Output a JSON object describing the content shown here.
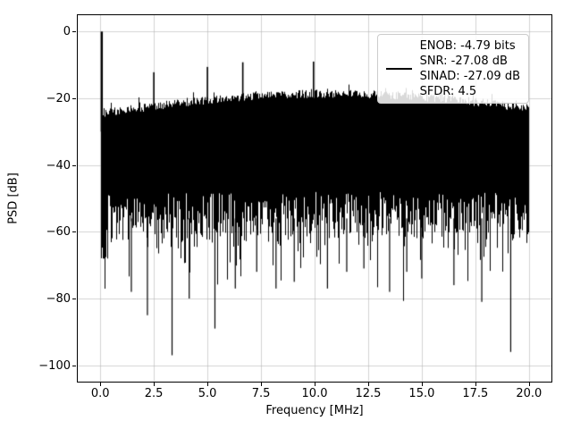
{
  "figure": {
    "background": "#ffffff",
    "line_color": "#000000",
    "grid_color": "#b0b0b0",
    "spine_color": "#000000"
  },
  "chart_data": {
    "type": "line",
    "title": "",
    "xlabel": "Frequency [MHz]",
    "ylabel": "PSD [dB]",
    "xlim": [
      -1.05,
      21.05
    ],
    "ylim": [
      -104.9,
      4.9
    ],
    "grid": true,
    "x_ticks": [
      {
        "value": 0.0,
        "label": "0.0"
      },
      {
        "value": 2.5,
        "label": "2.5"
      },
      {
        "value": 5.0,
        "label": "5.0"
      },
      {
        "value": 7.5,
        "label": "7.5"
      },
      {
        "value": 10.0,
        "label": "10.0"
      },
      {
        "value": 12.5,
        "label": "12.5"
      },
      {
        "value": 15.0,
        "label": "15.0"
      },
      {
        "value": 17.5,
        "label": "17.5"
      },
      {
        "value": 20.0,
        "label": "20.0"
      }
    ],
    "y_ticks": [
      {
        "value": 0,
        "label": "0"
      },
      {
        "value": -20,
        "label": "−20"
      },
      {
        "value": -40,
        "label": "−40"
      },
      {
        "value": -60,
        "label": "−60"
      },
      {
        "value": -80,
        "label": "−80"
      },
      {
        "value": -100,
        "label": "−100"
      }
    ],
    "legend": {
      "position": "upper right",
      "entries": [
        "ENOB: -4.79 bits",
        "SNR: -27.08 dB",
        "SINAD: -27.09 dB",
        "SFDR: 4.5"
      ]
    },
    "peaks": [
      {
        "x": 0.07,
        "y": 0.0
      },
      {
        "x": 2.5,
        "y": -12.2
      },
      {
        "x": 5.0,
        "y": -10.6
      },
      {
        "x": 6.65,
        "y": -9.2
      },
      {
        "x": 9.95,
        "y": -9.0
      }
    ],
    "noise_floor": {
      "top_envelope_db_at_0": -25,
      "top_envelope_db_at_10": -19,
      "top_envelope_db_at_20": -23,
      "dense_bottom_db": -62,
      "deepest_spike_db": -97
    },
    "deep_spikes": [
      {
        "x": 1.45,
        "y": -78
      },
      {
        "x": 2.2,
        "y": -85
      },
      {
        "x": 3.35,
        "y": -97
      },
      {
        "x": 4.15,
        "y": -80
      },
      {
        "x": 5.35,
        "y": -89
      },
      {
        "x": 6.3,
        "y": -77
      },
      {
        "x": 7.3,
        "y": -72
      },
      {
        "x": 8.2,
        "y": -77
      },
      {
        "x": 9.05,
        "y": -75
      },
      {
        "x": 10.6,
        "y": -77
      },
      {
        "x": 11.5,
        "y": -72
      },
      {
        "x": 12.3,
        "y": -71
      },
      {
        "x": 13.5,
        "y": -78
      },
      {
        "x": 14.3,
        "y": -72
      },
      {
        "x": 15.0,
        "y": -74
      },
      {
        "x": 16.5,
        "y": -76
      },
      {
        "x": 17.8,
        "y": -81
      },
      {
        "x": 19.15,
        "y": -96
      }
    ],
    "seed": 42
  }
}
